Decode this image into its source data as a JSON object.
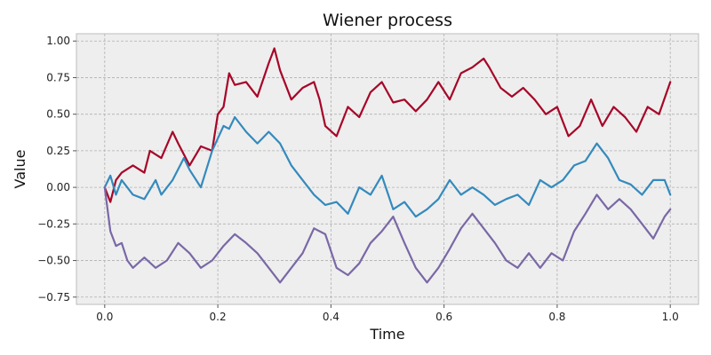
{
  "chart_data": {
    "type": "line",
    "title": "Wiener process",
    "xlabel": "Time",
    "ylabel": "Value",
    "xlim": [
      -0.05,
      1.05
    ],
    "ylim": [
      -0.8,
      1.05
    ],
    "x_ticks": [
      0.0,
      0.2,
      0.4,
      0.6,
      0.8,
      1.0
    ],
    "x_tick_labels": [
      "0.0",
      "0.2",
      "0.4",
      "0.6",
      "0.8",
      "1.0"
    ],
    "y_ticks": [
      1.0,
      0.75,
      0.5,
      0.25,
      0.0,
      -0.25,
      -0.5,
      -0.75
    ],
    "y_tick_labels": [
      "1.00",
      "0.75",
      "0.50",
      "0.25",
      "0.00",
      "−0.25",
      "−0.50",
      "−0.75"
    ],
    "grid": true,
    "legend": "none",
    "background_color": "#eeeeee",
    "grid_color": "#b0b0b0",
    "series": [
      {
        "color": "#a60628",
        "x": [
          0.0,
          0.01,
          0.02,
          0.03,
          0.05,
          0.07,
          0.08,
          0.1,
          0.12,
          0.13,
          0.15,
          0.17,
          0.19,
          0.2,
          0.21,
          0.22,
          0.23,
          0.25,
          0.27,
          0.29,
          0.3,
          0.31,
          0.33,
          0.35,
          0.37,
          0.38,
          0.39,
          0.41,
          0.43,
          0.45,
          0.47,
          0.49,
          0.51,
          0.53,
          0.55,
          0.57,
          0.59,
          0.61,
          0.63,
          0.65,
          0.67,
          0.68,
          0.7,
          0.72,
          0.74,
          0.76,
          0.78,
          0.8,
          0.82,
          0.84,
          0.86,
          0.88,
          0.9,
          0.92,
          0.94,
          0.96,
          0.98,
          1.0
        ],
        "y": [
          0.0,
          -0.1,
          0.05,
          0.1,
          0.15,
          0.1,
          0.25,
          0.2,
          0.38,
          0.3,
          0.15,
          0.28,
          0.25,
          0.5,
          0.55,
          0.78,
          0.7,
          0.72,
          0.62,
          0.85,
          0.95,
          0.8,
          0.6,
          0.68,
          0.72,
          0.6,
          0.42,
          0.35,
          0.55,
          0.48,
          0.65,
          0.72,
          0.58,
          0.6,
          0.52,
          0.6,
          0.72,
          0.6,
          0.78,
          0.82,
          0.88,
          0.82,
          0.68,
          0.62,
          0.68,
          0.6,
          0.5,
          0.55,
          0.35,
          0.42,
          0.6,
          0.42,
          0.55,
          0.48,
          0.38,
          0.55,
          0.5,
          0.72
        ]
      },
      {
        "color": "#348abd",
        "x": [
          0.0,
          0.01,
          0.02,
          0.03,
          0.05,
          0.07,
          0.09,
          0.1,
          0.12,
          0.14,
          0.15,
          0.17,
          0.19,
          0.21,
          0.22,
          0.23,
          0.25,
          0.27,
          0.29,
          0.31,
          0.33,
          0.35,
          0.37,
          0.39,
          0.41,
          0.43,
          0.45,
          0.47,
          0.49,
          0.51,
          0.53,
          0.55,
          0.57,
          0.59,
          0.61,
          0.63,
          0.65,
          0.67,
          0.69,
          0.71,
          0.73,
          0.75,
          0.77,
          0.79,
          0.81,
          0.83,
          0.85,
          0.87,
          0.89,
          0.91,
          0.93,
          0.95,
          0.97,
          0.99,
          1.0
        ],
        "y": [
          0.0,
          0.08,
          -0.05,
          0.05,
          -0.05,
          -0.08,
          0.05,
          -0.05,
          0.05,
          0.2,
          0.12,
          0.0,
          0.25,
          0.42,
          0.4,
          0.48,
          0.38,
          0.3,
          0.38,
          0.3,
          0.15,
          0.05,
          -0.05,
          -0.12,
          -0.1,
          -0.18,
          0.0,
          -0.05,
          0.08,
          -0.15,
          -0.1,
          -0.2,
          -0.15,
          -0.08,
          0.05,
          -0.05,
          0.0,
          -0.05,
          -0.12,
          -0.08,
          -0.05,
          -0.12,
          0.05,
          0.0,
          0.05,
          0.15,
          0.18,
          0.3,
          0.2,
          0.05,
          0.02,
          -0.05,
          0.05,
          0.05,
          -0.05
        ]
      },
      {
        "color": "#7a68a6",
        "x": [
          0.0,
          0.01,
          0.02,
          0.03,
          0.04,
          0.05,
          0.07,
          0.09,
          0.11,
          0.13,
          0.15,
          0.17,
          0.19,
          0.21,
          0.23,
          0.25,
          0.27,
          0.29,
          0.31,
          0.33,
          0.35,
          0.37,
          0.39,
          0.41,
          0.43,
          0.45,
          0.47,
          0.49,
          0.51,
          0.53,
          0.55,
          0.57,
          0.59,
          0.61,
          0.63,
          0.65,
          0.67,
          0.69,
          0.71,
          0.73,
          0.75,
          0.77,
          0.79,
          0.81,
          0.83,
          0.85,
          0.87,
          0.89,
          0.91,
          0.93,
          0.95,
          0.97,
          0.99,
          1.0
        ],
        "y": [
          0.0,
          -0.3,
          -0.4,
          -0.38,
          -0.5,
          -0.55,
          -0.48,
          -0.55,
          -0.5,
          -0.38,
          -0.45,
          -0.55,
          -0.5,
          -0.4,
          -0.32,
          -0.38,
          -0.45,
          -0.55,
          -0.65,
          -0.55,
          -0.45,
          -0.28,
          -0.32,
          -0.55,
          -0.6,
          -0.52,
          -0.38,
          -0.3,
          -0.2,
          -0.38,
          -0.55,
          -0.65,
          -0.55,
          -0.42,
          -0.28,
          -0.18,
          -0.28,
          -0.38,
          -0.5,
          -0.55,
          -0.45,
          -0.55,
          -0.45,
          -0.5,
          -0.3,
          -0.18,
          -0.05,
          -0.15,
          -0.08,
          -0.15,
          -0.25,
          -0.35,
          -0.2,
          -0.15
        ]
      }
    ]
  }
}
